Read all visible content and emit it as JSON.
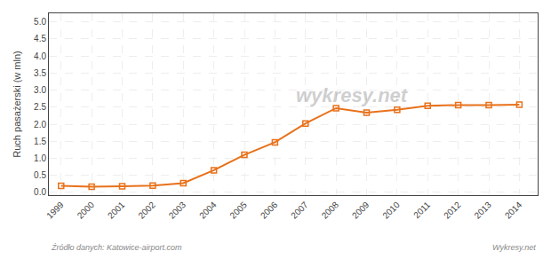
{
  "chart_data": {
    "type": "line",
    "x": [
      1999,
      2000,
      2001,
      2002,
      2003,
      2004,
      2005,
      2006,
      2007,
      2008,
      2009,
      2010,
      2011,
      2012,
      2013,
      2014
    ],
    "values": [
      0.19,
      0.17,
      0.18,
      0.2,
      0.27,
      0.65,
      1.1,
      1.47,
      2.02,
      2.47,
      2.34,
      2.42,
      2.54,
      2.56,
      2.56,
      2.57
    ],
    "color": "#e8711a",
    "marker": "square-open",
    "ylabel": "Ruch pasażerski (w mln)",
    "xlim": [
      1998.6,
      2014.6
    ],
    "xticks": [
      1999,
      2000,
      2001,
      2002,
      2003,
      2004,
      2005,
      2006,
      2007,
      2008,
      2009,
      2010,
      2011,
      2012,
      2013,
      2014
    ],
    "ylim": [
      -0.08,
      5.25
    ],
    "yticks": [
      {
        "value": 0.0,
        "label": "0.0"
      },
      0.5,
      {
        "value": 1.0,
        "label": "1.0"
      },
      1.5,
      {
        "value": 2.0,
        "label": "2.0"
      },
      2.5,
      {
        "value": 3.0,
        "label": "3.0"
      },
      3.5,
      {
        "value": 4.0,
        "label": "4.0"
      },
      4.5,
      {
        "value": 5.0,
        "label": "5.0"
      }
    ],
    "grid": true,
    "annotations": [
      "wykresy.net",
      "Źródło danych: Katowice-airport.com",
      "Wykresy.net"
    ]
  }
}
